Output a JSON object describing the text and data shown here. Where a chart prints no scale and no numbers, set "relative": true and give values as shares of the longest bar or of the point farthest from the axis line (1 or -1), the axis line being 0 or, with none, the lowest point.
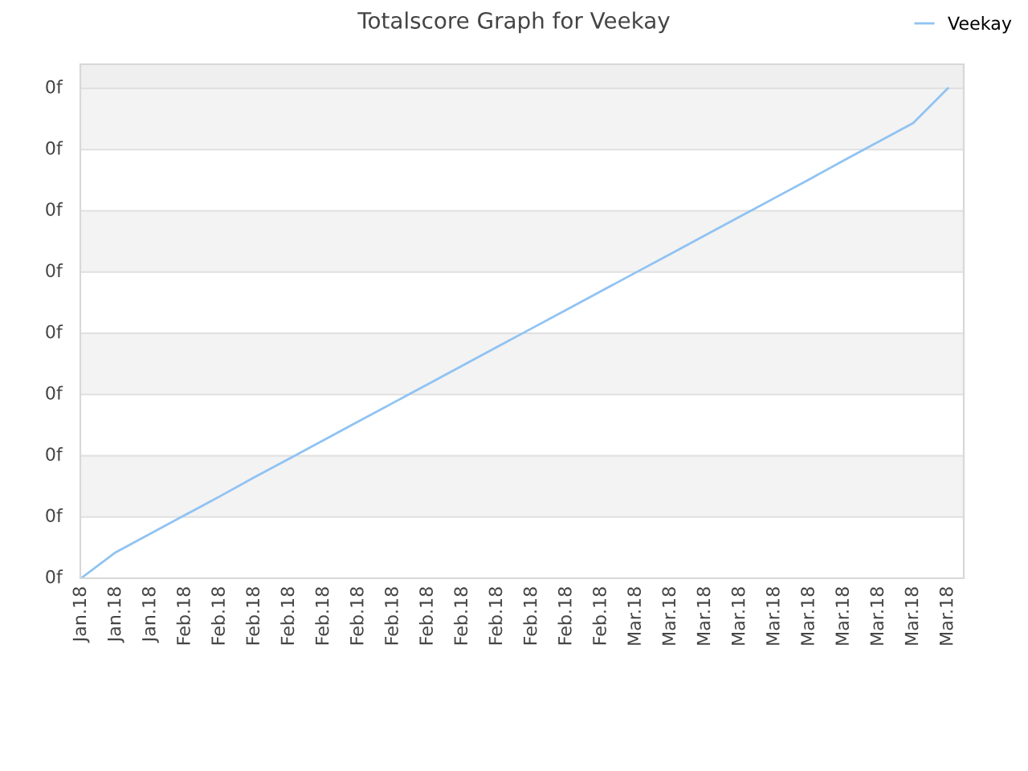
{
  "chart_data": {
    "type": "line",
    "title": "Totalscore Graph for Veekay",
    "relative": true,
    "categories": [
      "Jan.18",
      "Jan.18",
      "Jan.18",
      "Feb.18",
      "Feb.18",
      "Feb.18",
      "Feb.18",
      "Feb.18",
      "Feb.18",
      "Feb.18",
      "Feb.18",
      "Feb.18",
      "Feb.18",
      "Feb.18",
      "Feb.18",
      "Feb.18",
      "Mar.18",
      "Mar.18",
      "Mar.18",
      "Mar.18",
      "Mar.18",
      "Mar.18",
      "Mar.18",
      "Mar.18",
      "Mar.18",
      "Mar.18"
    ],
    "annotations": [
      "0f",
      "0f",
      "0f",
      "0f",
      "0f",
      "0f",
      "0f",
      "0f",
      "0f"
    ],
    "series": [
      {
        "name": "Veekay",
        "color": "#90c3f2",
        "values": [
          0,
          0.053,
          0.091,
          0.129,
          0.167,
          0.206,
          0.244,
          0.282,
          0.32,
          0.358,
          0.396,
          0.434,
          0.472,
          0.51,
          0.548,
          0.586,
          0.624,
          0.662,
          0.7,
          0.738,
          0.776,
          0.814,
          0.853,
          0.891,
          0.929,
          1
        ]
      }
    ],
    "grid": "y",
    "legend": "top right",
    "marker": "none",
    "line_style": "solid"
  }
}
